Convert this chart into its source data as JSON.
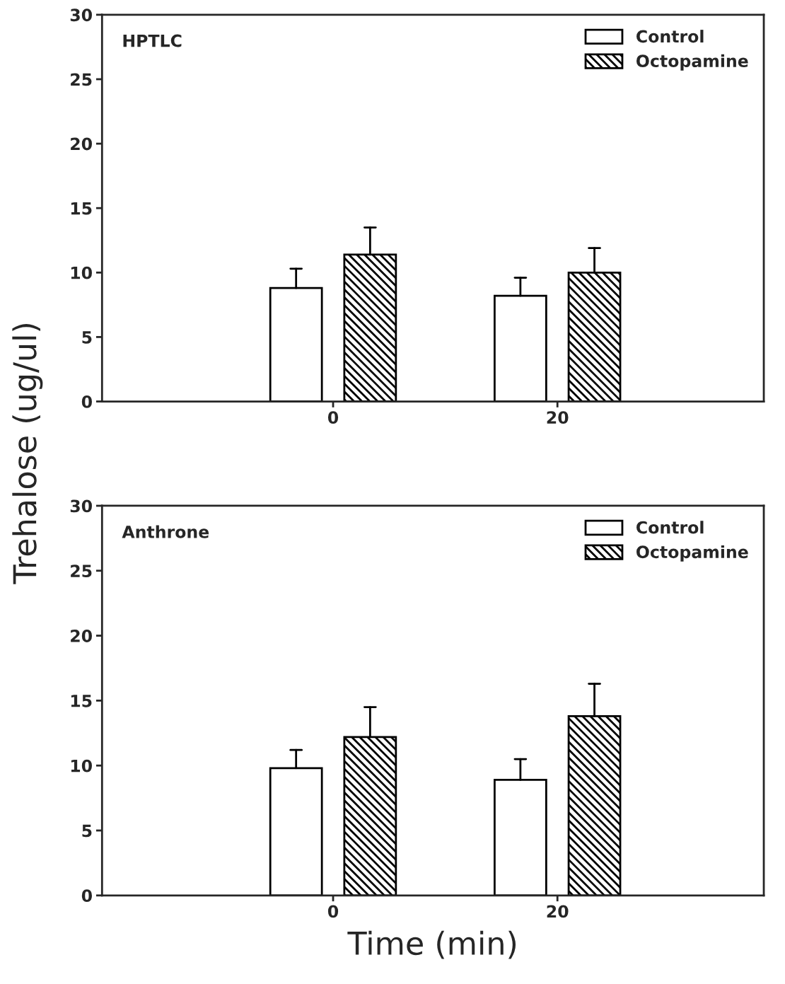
{
  "chart_data": [
    {
      "type": "bar",
      "title": "HPTLC",
      "ylabel": "Trehalose (ug/ul)",
      "categories": [
        "0",
        "20"
      ],
      "ylim": [
        0,
        30
      ],
      "yticks": [
        0,
        5,
        10,
        15,
        20,
        25,
        30
      ],
      "legend": "top right",
      "grid": false,
      "series": [
        {
          "name": "Control",
          "color": "#ffffff",
          "values": [
            8.8,
            8.2
          ],
          "errors": [
            [
              8.8,
              10.3
            ],
            [
              8.2,
              9.6
            ]
          ]
        },
        {
          "name": "Octopamine",
          "color": "#000000",
          "values": [
            11.4,
            10.0
          ],
          "errors": [
            [
              11.4,
              13.5
            ],
            [
              10.0,
              11.9
            ]
          ]
        }
      ]
    },
    {
      "type": "bar",
      "title": "Anthrone",
      "xlabel": "Time (min)",
      "categories": [
        "0",
        "20"
      ],
      "ylim": [
        0,
        30
      ],
      "yticks": [
        0,
        5,
        10,
        15,
        20,
        25,
        30
      ],
      "legend": "top right",
      "grid": false,
      "series": [
        {
          "name": "Control",
          "color": "#ffffff",
          "values": [
            9.8,
            8.9
          ],
          "errors": [
            [
              9.8,
              11.2
            ],
            [
              8.9,
              10.5
            ]
          ]
        },
        {
          "name": "Octopamine",
          "color": "#000000",
          "values": [
            12.2,
            13.8
          ],
          "errors": [
            [
              12.2,
              14.5
            ],
            [
              13.8,
              16.3
            ]
          ]
        }
      ]
    }
  ]
}
